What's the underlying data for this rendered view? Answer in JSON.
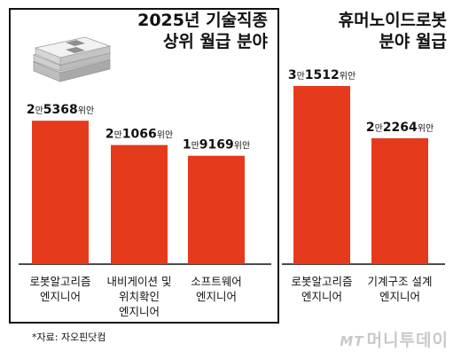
{
  "header": {
    "left_title": [
      "2025년 기술직종",
      "상위 월급 분야"
    ],
    "right_title": [
      "휴머노이드로봇",
      "분야 월급"
    ]
  },
  "footer": {
    "source": "*자료: 자오핀닷컴",
    "watermark_logo": "MT",
    "watermark_text": "머니투데이"
  },
  "colors": {
    "bar": "#e63a1c",
    "axis": "#111111",
    "frame": "#111111"
  },
  "icons": {
    "money_stack": "money-stack-icon"
  },
  "chart_data": [
    {
      "type": "bar",
      "title": "2025년 기술직종 상위 월급 분야",
      "categories": [
        [
          "로봇알고리즘",
          "엔지니어"
        ],
        [
          "내비게이션 및",
          "위치확인",
          "엔지니어"
        ],
        [
          "소프트웨어",
          "엔지니어"
        ]
      ],
      "values": [
        25368,
        21066,
        19169
      ],
      "value_labels": [
        {
          "num1": "2",
          "unit1": "만",
          "num2": "5368",
          "unit2": "위안"
        },
        {
          "num1": "2",
          "unit1": "만",
          "num2": "1066",
          "unit2": "위안"
        },
        {
          "num1": "1",
          "unit1": "만",
          "num2": "9169",
          "unit2": "위안"
        }
      ],
      "unit": "위안"
    },
    {
      "type": "bar",
      "title": "휴머노이드로봇 분야 월급",
      "categories": [
        [
          "로봇알고리즘",
          "엔지니어"
        ],
        [
          "기계구조 설계",
          "엔지니어"
        ]
      ],
      "values": [
        31512,
        22264
      ],
      "value_labels": [
        {
          "num1": "3",
          "unit1": "만",
          "num2": "1512",
          "unit2": "위안"
        },
        {
          "num1": "2",
          "unit1": "만",
          "num2": "2264",
          "unit2": "위안"
        }
      ],
      "unit": "위안"
    }
  ]
}
